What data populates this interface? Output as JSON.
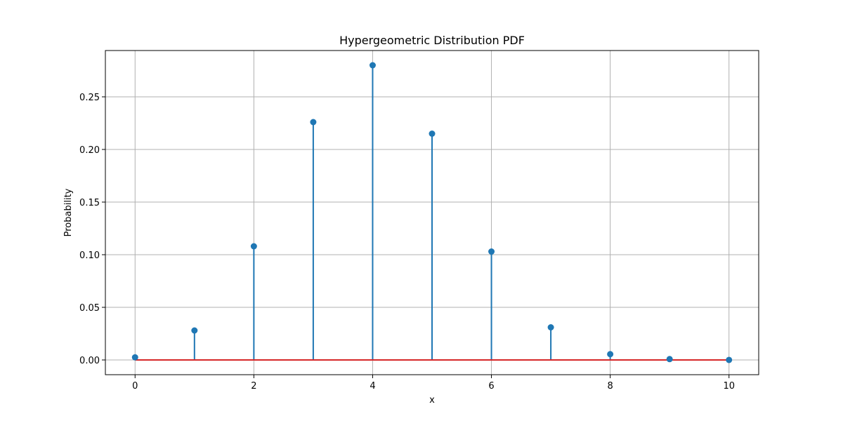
{
  "chart_data": {
    "type": "stem",
    "title": "Hypergeometric Distribution PDF",
    "xlabel": "x",
    "ylabel": "Probability",
    "x": [
      0,
      1,
      2,
      3,
      4,
      5,
      6,
      7,
      8,
      9,
      10
    ],
    "y": [
      0.0025,
      0.028,
      0.108,
      0.226,
      0.28,
      0.215,
      0.103,
      0.031,
      0.0055,
      0.0008,
      4e-05
    ],
    "xlim": [
      -0.5,
      10.5
    ],
    "ylim": [
      -0.014,
      0.294
    ],
    "xticks": [
      0,
      2,
      4,
      6,
      8,
      10
    ],
    "yticks": [
      0.0,
      0.05,
      0.1,
      0.15,
      0.2,
      0.25
    ],
    "ytick_labels": [
      "0.00",
      "0.05",
      "0.10",
      "0.15",
      "0.20",
      "0.25"
    ],
    "grid": true,
    "colors": {
      "stem": "#1f77b4",
      "baseline": "#d62728",
      "grid": "#b0b0b0"
    }
  }
}
